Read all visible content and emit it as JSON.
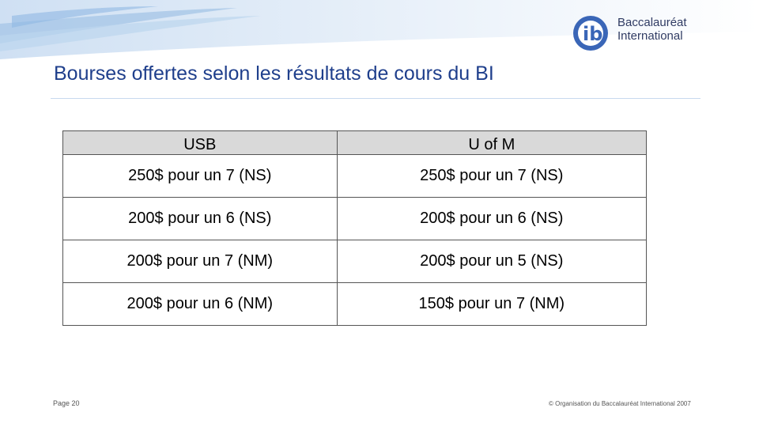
{
  "logo": {
    "line1": "Baccalauréat",
    "line2": "International"
  },
  "slide": {
    "title": "Bourses offertes selon les résultats de cours du BI"
  },
  "table": {
    "headers": [
      "USB",
      "U of M"
    ],
    "rows": [
      [
        "250$  pour un 7 (NS)",
        "250$  pour un 7 (NS)"
      ],
      [
        "200$  pour un 6 (NS)",
        "200$  pour un 6 (NS)"
      ],
      [
        "200$  pour un 7 (NM)",
        "200$  pour un 5 (NS)"
      ],
      [
        "200$  pour un 6 (NM)",
        "150$  pour un 7 (NM)"
      ]
    ]
  },
  "footer": {
    "page": "Page 20",
    "copyright": "© Organisation du Baccalauréat International 2007"
  },
  "colors": {
    "title": "#1f3f8c",
    "banner": "#a7c7e7",
    "logo": "#2f3b63",
    "header_bg": "#d9d9d9"
  }
}
